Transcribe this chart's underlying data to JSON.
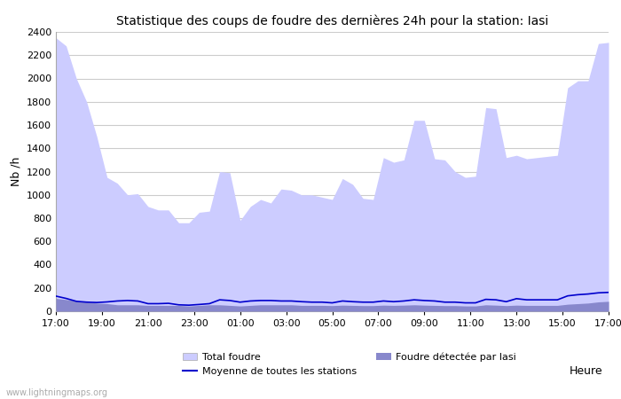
{
  "title": "Statistique des coups de foudre des dernières 24h pour la station: Iasi",
  "xlabel": "Heure",
  "ylabel": "Nb /h",
  "watermark": "www.lightningmaps.org",
  "x_ticks": [
    "17:00",
    "19:00",
    "21:00",
    "23:00",
    "01:00",
    "03:00",
    "05:00",
    "07:00",
    "09:00",
    "11:00",
    "13:00",
    "15:00",
    "17:00"
  ],
  "ylim": [
    0,
    2400
  ],
  "yticks": [
    0,
    200,
    400,
    600,
    800,
    1000,
    1200,
    1400,
    1600,
    1800,
    2000,
    2200,
    2400
  ],
  "total_foudre_color": "#ccccff",
  "foudre_iasi_color": "#8888cc",
  "moyenne_color": "#0000cc",
  "background_color": "#ffffff",
  "grid_color": "#cccccc",
  "legend_labels": [
    "Total foudre",
    "Foudre détectée par Iasi",
    "Moyenne de toutes les stations"
  ],
  "total_foudre": [
    2350,
    2280,
    2000,
    1800,
    1500,
    1150,
    1100,
    1000,
    1010,
    900,
    870,
    870,
    760,
    760,
    850,
    860,
    1200,
    1190,
    780,
    900,
    960,
    930,
    1050,
    1040,
    1000,
    1000,
    980,
    960,
    1140,
    1090,
    970,
    960,
    1320,
    1280,
    1300,
    1640,
    1640,
    1310,
    1300,
    1200,
    1150,
    1160,
    1750,
    1740,
    1320,
    1340,
    1310,
    1320,
    1330,
    1340,
    1920,
    1980,
    1980,
    2300,
    2310
  ],
  "foudre_iasi": [
    110,
    100,
    90,
    80,
    70,
    65,
    55,
    55,
    55,
    50,
    50,
    50,
    50,
    45,
    50,
    55,
    55,
    50,
    45,
    50,
    55,
    55,
    55,
    55,
    50,
    50,
    50,
    48,
    52,
    50,
    48,
    48,
    52,
    50,
    52,
    55,
    52,
    50,
    48,
    48,
    45,
    45,
    55,
    52,
    48,
    52,
    50,
    50,
    50,
    50,
    60,
    65,
    70,
    80,
    85
  ],
  "moyenne": [
    130,
    110,
    85,
    78,
    75,
    80,
    88,
    92,
    88,
    65,
    65,
    68,
    55,
    52,
    58,
    65,
    98,
    92,
    78,
    88,
    92,
    92,
    88,
    88,
    82,
    78,
    78,
    72,
    88,
    82,
    78,
    78,
    88,
    82,
    88,
    98,
    92,
    88,
    78,
    78,
    72,
    72,
    102,
    98,
    82,
    108,
    98,
    98,
    98,
    98,
    132,
    142,
    148,
    158,
    162
  ]
}
